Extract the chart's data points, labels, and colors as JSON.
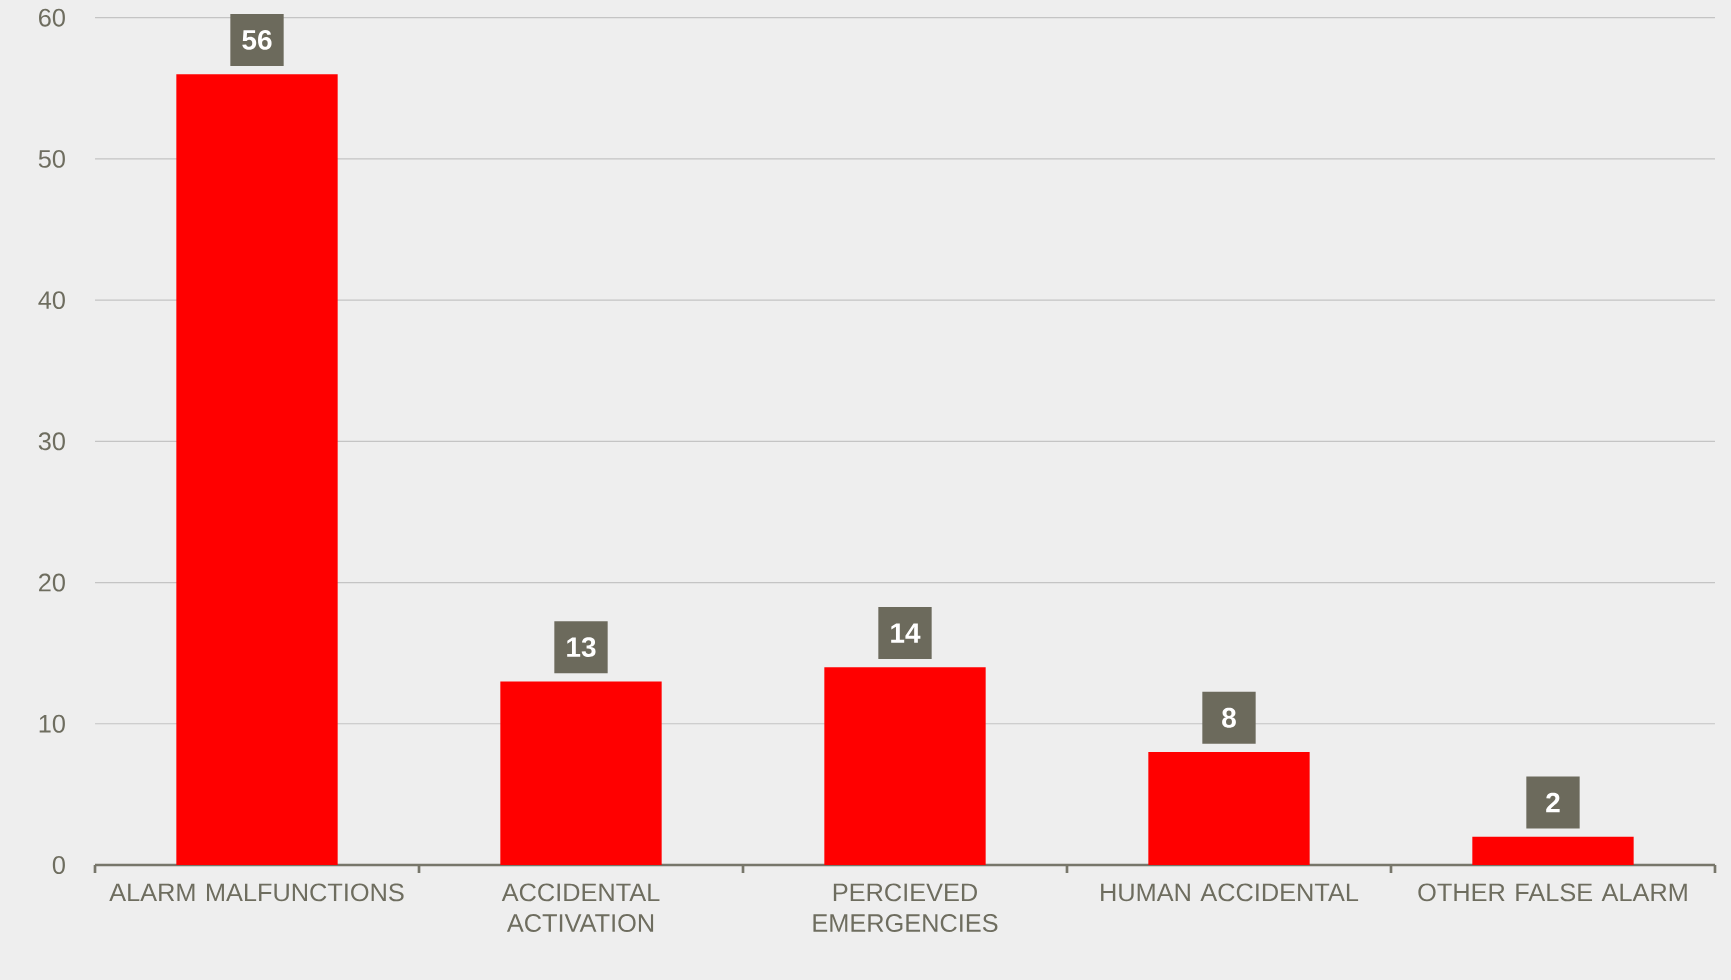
{
  "chart_data": {
    "type": "bar",
    "categories": [
      "ALARM MALFUNCTIONS",
      "ACCIDENTAL ACTIVATION",
      "PERCIEVED EMERGENCIES",
      "HUMAN ACCIDENTAL",
      "OTHER FALSE ALARM"
    ],
    "values": [
      56,
      13,
      14,
      8,
      2
    ],
    "color": "#ff0000",
    "ylim": [
      0,
      60
    ],
    "yticks": [
      0,
      10,
      20,
      30,
      40,
      50,
      60
    ],
    "grid": "y",
    "data_labels": true
  }
}
